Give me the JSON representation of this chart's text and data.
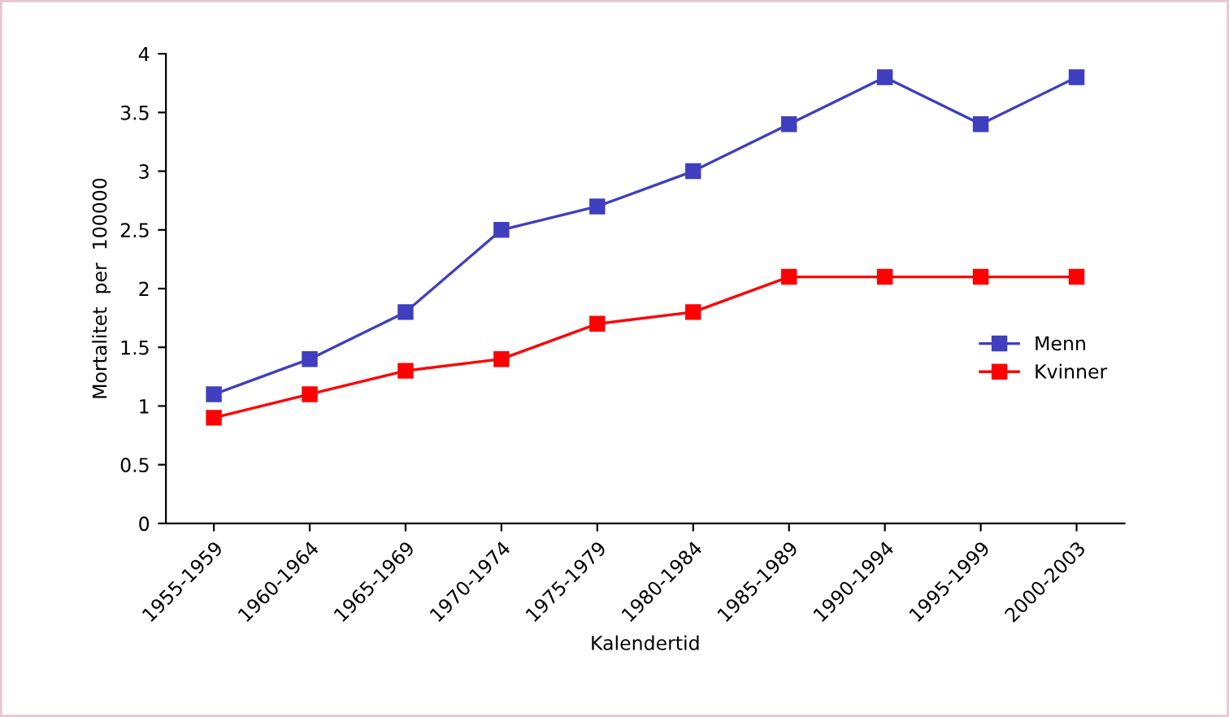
{
  "chart_data": {
    "type": "line",
    "xlabel": "Kalendertid",
    "ylabel": "Mortalitet  per  100000",
    "categories": [
      "1955-1959",
      "1960-1964",
      "1965-1969",
      "1970-1974",
      "1975-1979",
      "1980-1984",
      "1985-1989",
      "1990-1994",
      "1995-1999",
      "2000-2003"
    ],
    "series": [
      {
        "name": "Menn",
        "color": "#3f3fbf",
        "values": [
          1.1,
          1.4,
          1.8,
          2.5,
          2.7,
          3.0,
          3.4,
          3.8,
          3.4,
          3.8
        ]
      },
      {
        "name": "Kvinner",
        "color": "#ff0000",
        "values": [
          0.9,
          1.1,
          1.3,
          1.4,
          1.7,
          1.8,
          2.1,
          2.1,
          2.1,
          2.1
        ]
      }
    ],
    "ylim": [
      0,
      4
    ],
    "yticks": [
      0,
      0.5,
      1,
      1.5,
      2,
      2.5,
      3,
      3.5,
      4
    ],
    "grid": false,
    "legend": "right",
    "marker": "square",
    "line_style": "solid"
  }
}
